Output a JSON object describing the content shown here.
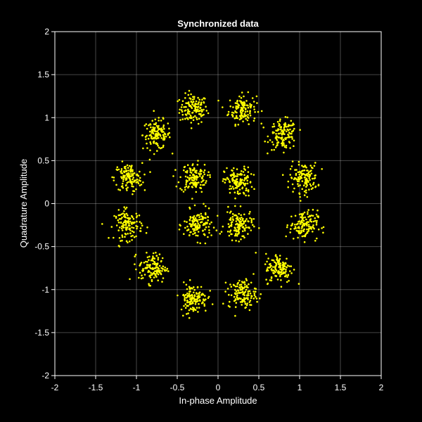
{
  "chart_data": {
    "type": "scatter",
    "title": "Synchronized data",
    "xlabel": "In-phase Amplitude",
    "ylabel": "Quadrature Amplitude",
    "xlim": [
      -2,
      2
    ],
    "ylim": [
      -2,
      2
    ],
    "x_ticks": [
      -2,
      -1.5,
      -1,
      -0.5,
      0,
      0.5,
      1,
      1.5,
      2
    ],
    "y_ticks": [
      -2,
      -1.5,
      -1,
      -0.5,
      0,
      0.5,
      1,
      1.5,
      2
    ],
    "x_tick_labels": [
      "-2",
      "-1.5",
      "-1",
      "-0.5",
      "0",
      "0.5",
      "1",
      "1.5",
      "2"
    ],
    "y_tick_labels": [
      "-2",
      "-1.5",
      "-1",
      "-0.5",
      "0",
      "0.5",
      "1",
      "1.5",
      "2"
    ],
    "grid": true,
    "marker_color": "#ffff00",
    "background_color": "#000000",
    "points_per_cluster": 130,
    "cluster_spread": 0.085,
    "cluster_centers": [
      [
        -0.3,
        1.1
      ],
      [
        0.3,
        1.1
      ],
      [
        -0.75,
        0.8
      ],
      [
        0.8,
        0.8
      ],
      [
        -1.1,
        0.3
      ],
      [
        -0.3,
        0.3
      ],
      [
        0.25,
        0.25
      ],
      [
        1.05,
        0.3
      ],
      [
        -1.1,
        -0.25
      ],
      [
        -0.25,
        -0.25
      ],
      [
        0.25,
        -0.25
      ],
      [
        1.05,
        -0.25
      ],
      [
        -0.8,
        -0.75
      ],
      [
        0.75,
        -0.75
      ],
      [
        -0.3,
        -1.1
      ],
      [
        0.3,
        -1.05
      ]
    ]
  }
}
